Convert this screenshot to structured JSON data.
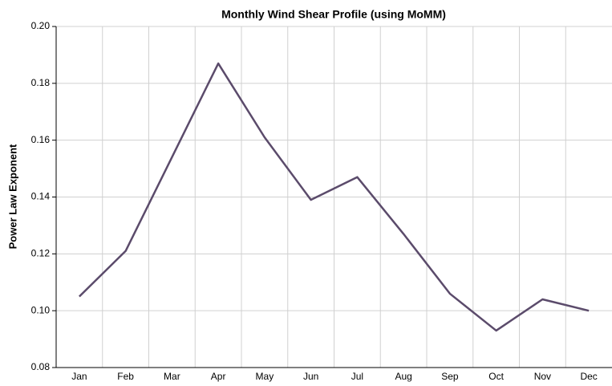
{
  "chart_data": {
    "type": "line",
    "title": "Monthly Wind Shear Profile (using MoMM)",
    "y_label": "Power Law Exponent",
    "categories": [
      "Jan",
      "Feb",
      "Mar",
      "Apr",
      "May",
      "Jun",
      "Jul",
      "Aug",
      "Sep",
      "Oct",
      "Nov",
      "Dec"
    ],
    "values": [
      0.105,
      0.121,
      0.154,
      0.187,
      0.161,
      0.139,
      0.147,
      0.127,
      0.106,
      0.093,
      0.104,
      0.1
    ],
    "color": "#5b4b6b",
    "ylim": [
      0.08,
      0.2
    ],
    "yticks": [
      0.08,
      {
        "value": 0.1,
        "label": "0.10"
      },
      0.12,
      0.14,
      0.16,
      0.18,
      {
        "value": 0.2,
        "label": "0.20"
      }
    ],
    "grid": true
  }
}
